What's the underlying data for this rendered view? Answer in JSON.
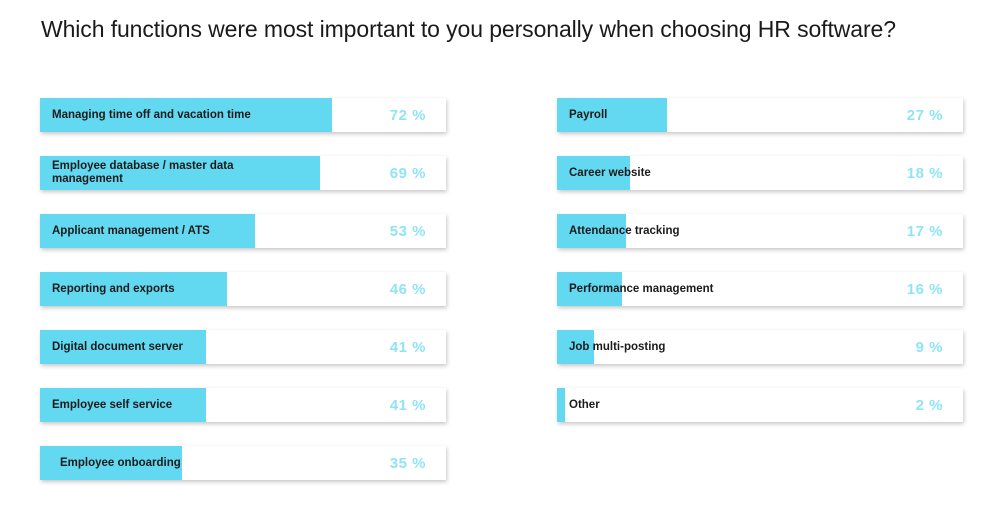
{
  "chart_data": {
    "type": "bar",
    "title": "Which functions were most important to you personally when choosing HR software?",
    "orientation": "horizontal",
    "xlim": [
      0,
      100
    ],
    "unit": "%",
    "bar_color": "#62d8f1",
    "value_color": "#8fe4f6",
    "columns": [
      {
        "items": [
          {
            "label": "Managing time off and vacation time",
            "value": 72,
            "value_label": "72 %"
          },
          {
            "label": "Employee database / master data management",
            "value": 69,
            "value_label": "69 %"
          },
          {
            "label": "Applicant management / ATS",
            "value": 53,
            "value_label": "53 %"
          },
          {
            "label": "Reporting and exports",
            "value": 46,
            "value_label": "46 %"
          },
          {
            "label": "Digital document server",
            "value": 41,
            "value_label": "41 %"
          },
          {
            "label": "Employee self service",
            "value": 41,
            "value_label": "41 %"
          },
          {
            "label": "Employee onboarding",
            "value": 35,
            "value_label": "35 %"
          }
        ]
      },
      {
        "items": [
          {
            "label": "Payroll",
            "value": 27,
            "value_label": "27 %"
          },
          {
            "label": "Career website",
            "value": 18,
            "value_label": "18 %"
          },
          {
            "label": "Attendance tracking",
            "value": 17,
            "value_label": "17 %"
          },
          {
            "label": "Performance management",
            "value": 16,
            "value_label": "16 %"
          },
          {
            "label": "Job multi-posting",
            "value": 9,
            "value_label": "9 %"
          },
          {
            "label": "Other",
            "value": 2,
            "value_label": "2 %"
          }
        ]
      }
    ]
  }
}
